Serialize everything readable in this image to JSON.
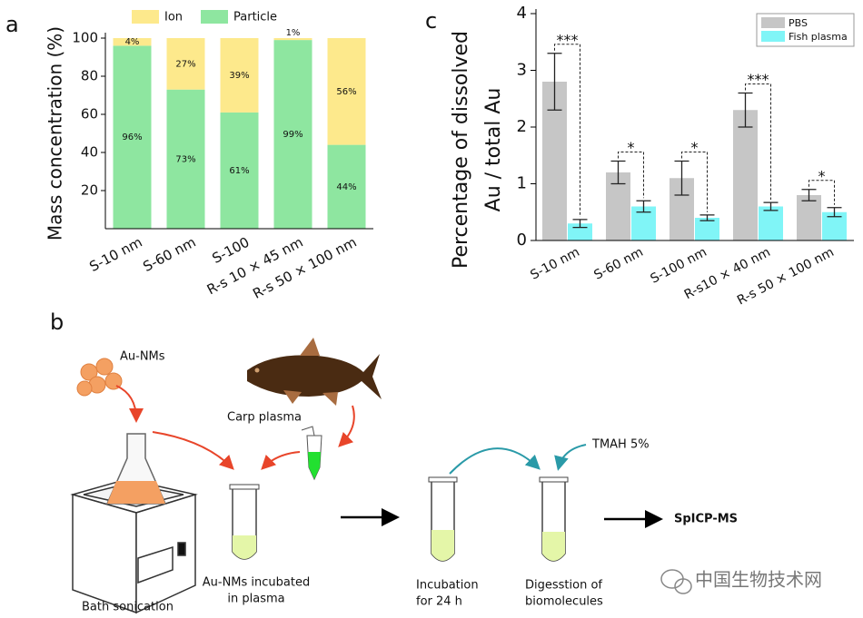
{
  "panel_labels": {
    "a": "a",
    "b": "b",
    "c": "c"
  },
  "chart_data": [
    {
      "type": "stacked_bar",
      "ylabel": "Mass concentration (%)",
      "categories": [
        "S-10 nm",
        "S-60 nm",
        "S-100",
        "R-s 10 × 45 nm",
        "R-s 50 × 100 nm"
      ],
      "series": [
        {
          "name": "Particle",
          "color": "#8ee6a0",
          "values": [
            96,
            73,
            61,
            99,
            44
          ],
          "value_labels": [
            "96%",
            "73%",
            "61%",
            "99%",
            "44%"
          ]
        },
        {
          "name": "Ion",
          "color": "#fde98c",
          "values": [
            4,
            27,
            39,
            1,
            56
          ],
          "value_labels": [
            "4%",
            "27%",
            "39%",
            "1%",
            "56%"
          ]
        }
      ],
      "ylim": [
        0,
        100
      ],
      "yticks": [
        20,
        40,
        60,
        80,
        100
      ]
    },
    {
      "type": "grouped_bar",
      "ylabel": [
        "Percentage of dissolved",
        "Au / total Au"
      ],
      "categories": [
        "S-10 nm",
        "S-60 nm",
        "S-100 nm",
        "R-s10 × 40 nm",
        "R-s 50 × 100 nm"
      ],
      "series": [
        {
          "name": "PBS",
          "color": "#c6c6c6",
          "values": [
            2.8,
            1.2,
            1.1,
            2.3,
            0.8
          ],
          "errors": [
            0.5,
            0.2,
            0.3,
            0.3,
            0.1
          ]
        },
        {
          "name": "Fish plasma",
          "color": "#80f5f7",
          "values": [
            0.3,
            0.6,
            0.4,
            0.6,
            0.5
          ],
          "errors": [
            0.07,
            0.1,
            0.05,
            0.07,
            0.08
          ]
        }
      ],
      "annotations": [
        "***",
        "*",
        "*",
        "***",
        "*"
      ],
      "ylim": [
        0,
        4
      ],
      "yticks": [
        0,
        1,
        2,
        3,
        4
      ]
    }
  ],
  "diagram": {
    "au_nms": "Au-NMs",
    "carp_plasma": "Carp plasma",
    "bath_sonication": "Bath sonication",
    "incubated": [
      "Au-NMs incubated",
      "in plasma"
    ],
    "incubation": [
      "Incubation",
      "for 24 h"
    ],
    "digestion": [
      "Digesstion of",
      "biomolecules"
    ],
    "tmah": "TMAH 5%",
    "spicp": "SpICP-MS",
    "watermark": "中国生物技术网"
  }
}
